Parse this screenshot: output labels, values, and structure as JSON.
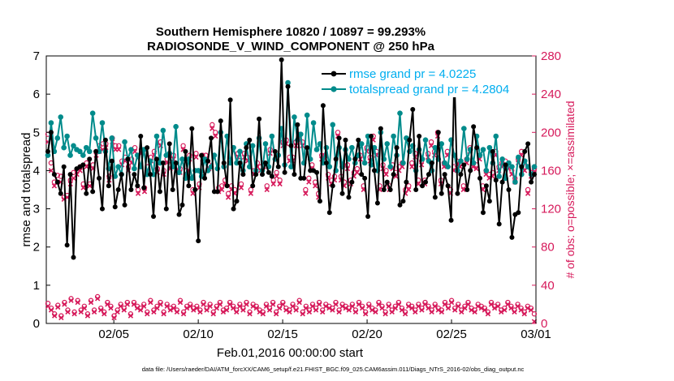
{
  "chart_data": {
    "type": "line",
    "title": "Southern Hemisphere 10820 / 10897 = 99.293%",
    "subtitle": "RADIOSONDE_V_WIND_COMPONENT @ 250 hPa",
    "xlabel": "Feb.01,2016 00:00:00 start",
    "ylabel": "rmse and totalspread",
    "ylabel_right": "# of obs: o=possible; ×=assimilated",
    "footnote": "data file: /Users/raeder/DAI/ATM_forcXX/CAM6_setup/f.e21.FHIST_BGC.f09_025.CAM6assim.011/Diags_NTrS_2016-02/obs_diag_output.nc",
    "xlim": [
      1,
      30
    ],
    "ylim": [
      0,
      7
    ],
    "ylim_right": [
      0,
      280
    ],
    "x_tick_labels": [
      "02/05",
      "02/10",
      "02/15",
      "02/20",
      "02/25",
      "03/01"
    ],
    "x_tick_values": [
      5,
      10,
      15,
      20,
      25,
      30
    ],
    "y_tick_labels": [
      "0",
      "1",
      "2",
      "3",
      "4",
      "5",
      "6",
      "7"
    ],
    "y_right_tick_labels": [
      "0",
      "40",
      "80",
      "120",
      "160",
      "200",
      "240",
      "280"
    ],
    "legend": [
      "rmse grand pr = 4.0225",
      "totalspread grand pr = 4.2804"
    ],
    "series": [
      {
        "name": "rmse grand pr = 4.0225",
        "color": "#000000",
        "values": [
          4.5,
          5.0,
          3.9,
          3.7,
          3.4,
          4.1,
          2.05,
          3.9,
          1.73,
          4.05,
          4.1,
          4.15,
          3.4,
          4.3,
          3.45,
          4.5,
          3.8,
          3.0,
          4.8,
          3.6,
          4.25,
          3.05,
          3.5,
          3.9,
          3.1,
          4.3,
          3.5,
          3.9,
          3.6,
          4.9,
          3.55,
          4.6,
          3.9,
          2.8,
          4.3,
          3.45,
          4.2,
          3.0,
          4.7,
          3.5,
          4.2,
          2.85,
          3.1,
          4.5,
          3.6,
          5.1,
          3.5,
          2.16,
          4.4,
          3.8,
          4.25,
          4.85,
          3.45,
          3.45,
          5.3,
          4.2,
          3.6,
          5.85,
          3.0,
          3.2,
          4.2,
          3.9,
          4.6,
          4.8,
          3.6,
          3.9,
          5.35,
          3.9,
          4.2,
          3.95,
          3.85,
          4.5,
          4.1,
          6.9,
          3.95,
          6.2,
          4.65,
          3.9,
          5.2,
          3.8,
          3.8,
          4.6,
          4.0,
          4.0,
          3.95,
          3.2,
          5.7,
          4.2,
          2.9,
          3.6,
          4.3,
          4.85,
          3.4,
          4.8,
          3.3,
          3.7,
          4.3,
          4.8,
          3.9,
          3.8,
          2.8,
          4.9,
          4.0,
          3.15,
          5.1,
          3.5,
          3.7,
          3.5,
          3.9,
          4.6,
          3.1,
          3.2,
          3.7,
          4.8,
          5.6,
          3.5,
          4.9,
          3.6,
          3.7,
          3.9,
          4.2,
          3.3,
          5.0,
          3.4,
          3.9,
          3.6,
          2.7,
          6.55,
          3.4,
          3.9,
          4.15,
          3.5,
          4.0,
          5.15,
          4.6,
          3.8,
          2.9,
          3.6,
          3.2,
          4.5,
          3.75,
          2.6,
          3.7,
          4.15,
          3.5,
          2.25,
          2.85,
          2.9,
          4.1,
          4.5,
          4.7,
          3.7,
          3.9
        ]
      },
      {
        "name": "totalspread grand pr = 4.2804",
        "color": "#008b8b",
        "values": [
          4.4,
          5.25,
          4.5,
          4.85,
          5.4,
          4.6,
          4.9,
          4.4,
          4.65,
          4.55,
          4.5,
          4.4,
          4.6,
          4.5,
          5.5,
          4.85,
          4.5,
          5.25,
          4.5,
          4.05,
          4.85,
          3.85,
          4.1,
          3.9,
          4.75,
          4.3,
          4.55,
          4.05,
          4.4,
          4.1,
          4.55,
          3.9,
          4.25,
          3.9,
          4.9,
          4.2,
          5.05,
          4.4,
          4.45,
          4.1,
          5.15,
          3.95,
          4.3,
          3.8,
          4.3,
          3.8,
          4.0,
          4.0,
          3.85,
          4.3,
          4.0,
          4.1,
          4.4,
          4.05,
          5.0,
          4.1,
          4.9,
          4.2,
          4.6,
          4.2,
          4.5,
          4.0,
          4.7,
          4.1,
          4.65,
          4.0,
          4.85,
          4.0,
          4.7,
          4.1,
          4.9,
          4.3,
          4.4,
          5.1,
          4.15,
          6.3,
          4.1,
          5.4,
          4.8,
          4.95,
          4.2,
          5.45,
          4.3,
          5.25,
          4.55,
          4.7,
          4.2,
          4.6,
          4.1,
          5.2,
          4.0,
          4.6,
          4.1,
          4.55,
          4.3,
          4.6,
          4.2,
          4.4,
          4.7,
          4.2,
          4.9,
          4.15,
          4.6,
          4.0,
          5.0,
          4.3,
          4.7,
          4.1,
          4.9,
          4.4,
          5.5,
          4.2,
          4.85,
          4.5,
          4.65,
          4.0,
          4.55,
          4.3,
          4.8,
          4.25,
          4.0,
          4.6,
          4.3,
          4.7,
          4.2,
          4.1,
          4.8,
          4.4,
          4.0,
          4.25,
          5.1,
          4.3,
          4.55,
          4.2,
          4.9,
          4.4,
          4.55,
          4.0,
          4.6,
          4.2,
          4.9,
          3.85,
          4.3,
          3.8,
          4.2,
          4.1,
          3.7,
          4.35,
          3.9,
          4.25,
          4.1,
          3.9,
          4.1
        ]
      }
    ],
    "obs_possible_top": [
      198,
      168,
      148,
      155,
      154,
      132,
      134,
      150,
      158,
      160,
      164,
      146,
      168,
      146,
      166,
      180,
      186,
      188,
      188,
      154,
      194,
      186,
      186,
      170,
      174,
      164,
      172,
      184,
      140,
      182,
      142,
      164,
      174,
      180,
      162,
      190,
      160,
      172,
      166,
      176,
      164,
      162,
      186,
      160,
      176,
      140,
      178,
      146,
      176,
      176,
      166,
      208,
      200,
      142,
      144,
      150,
      136,
      144,
      140,
      178,
      146,
      178,
      174,
      140,
      160,
      168,
      164,
      168,
      144,
      182,
      150,
      158,
      150,
      190,
      192,
      174,
      174,
      190,
      198,
      190,
      140,
      152,
      166,
      148,
      136,
      176,
      176,
      156,
      150,
      154,
      200,
      154,
      148,
      166,
      150,
      158,
      162,
      176,
      144,
      184,
      174,
      196,
      180,
      144,
      166,
      160,
      144,
      166,
      158,
      164,
      168,
      140,
      144,
      168,
      178,
      150,
      170,
      150,
      178,
      190,
      180,
      200,
      150,
      168,
      180,
      140,
      164,
      170,
      168,
      144,
      172,
      184,
      168,
      166,
      176,
      144,
      160,
      156,
      158,
      180,
      164,
      168,
      170,
      166,
      160,
      152,
      172,
      180,
      164,
      140,
      158,
      162
    ],
    "obs_assim_top": [
      190,
      160,
      144,
      148,
      148,
      130,
      132,
      146,
      152,
      156,
      160,
      142,
      164,
      144,
      162,
      176,
      180,
      182,
      184,
      150,
      190,
      182,
      182,
      166,
      170,
      160,
      168,
      180,
      136,
      178,
      138,
      160,
      170,
      176,
      158,
      186,
      156,
      168,
      162,
      172,
      160,
      158,
      182,
      156,
      172,
      136,
      174,
      142,
      172,
      172,
      162,
      204,
      196,
      138,
      140,
      146,
      132,
      140,
      136,
      174,
      142,
      174,
      170,
      136,
      156,
      164,
      160,
      164,
      140,
      178,
      146,
      154,
      146,
      186,
      188,
      170,
      170,
      186,
      194,
      186,
      136,
      148,
      162,
      144,
      132,
      172,
      172,
      152,
      146,
      150,
      196,
      150,
      144,
      162,
      146,
      154,
      158,
      172,
      140,
      180,
      170,
      192,
      176,
      140,
      162,
      156,
      140,
      162,
      154,
      160,
      164,
      136,
      140,
      164,
      174,
      146,
      166,
      146,
      174,
      186,
      176,
      196,
      146,
      164,
      176,
      136,
      160,
      166,
      164,
      140,
      168,
      180,
      164,
      162,
      172,
      140,
      156,
      152,
      154,
      176,
      160,
      164,
      166,
      162,
      156,
      148,
      168,
      176,
      160,
      136,
      154,
      158
    ],
    "obs_possible_bottom": [
      21,
      16,
      10,
      19,
      8,
      22,
      14,
      26,
      12,
      24,
      14,
      18,
      10,
      24,
      14,
      28,
      16,
      12,
      22,
      18,
      8,
      14,
      20,
      16,
      22,
      10,
      22,
      18,
      16,
      20,
      12,
      24,
      14,
      18,
      22,
      12,
      20,
      16,
      18,
      14,
      24,
      12,
      18,
      20,
      16,
      18,
      14,
      22,
      16,
      20,
      12,
      18,
      22,
      14,
      16,
      22,
      18,
      14,
      20,
      16,
      22,
      12,
      20,
      18,
      14,
      12,
      20,
      16,
      22,
      12,
      18,
      22,
      16,
      14,
      20,
      16,
      24,
      12,
      18,
      14,
      20,
      16,
      22,
      14,
      20,
      18,
      16,
      22,
      14,
      20,
      18,
      16,
      20,
      14,
      22,
      18,
      12,
      20,
      16,
      14,
      22,
      18,
      12,
      20,
      14,
      18,
      22,
      16,
      12,
      20,
      18,
      14,
      20,
      16,
      22,
      18,
      14,
      20,
      16,
      14,
      22,
      18,
      24,
      16,
      20,
      14,
      18,
      22,
      16,
      14,
      20,
      18,
      16,
      12,
      22,
      18,
      20,
      14,
      16,
      22,
      18,
      14,
      20,
      16,
      12,
      18,
      16,
      10
    ],
    "obs_assim_bottom": [
      18,
      14,
      8,
      17,
      6,
      20,
      12,
      24,
      10,
      22,
      12,
      16,
      8,
      22,
      12,
      26,
      14,
      10,
      20,
      16,
      6,
      12,
      18,
      14,
      20,
      8,
      20,
      16,
      14,
      18,
      10,
      22,
      12,
      16,
      20,
      10,
      18,
      14,
      16,
      12,
      22,
      10,
      16,
      18,
      14,
      16,
      12,
      20,
      14,
      18,
      10,
      16,
      20,
      12,
      14,
      20,
      16,
      12,
      18,
      14,
      20,
      10,
      18,
      16,
      12,
      10,
      18,
      14,
      20,
      10,
      16,
      20,
      14,
      12,
      18,
      14,
      22,
      10,
      16,
      12,
      18,
      14,
      20,
      12,
      18,
      16,
      14,
      20,
      12,
      18,
      16,
      14,
      18,
      12,
      20,
      16,
      10,
      18,
      14,
      12,
      20,
      16,
      10,
      18,
      12,
      16,
      20,
      14,
      10,
      18,
      16,
      12,
      18,
      14,
      20,
      16,
      12,
      18,
      14,
      12,
      20,
      16,
      22,
      14,
      18,
      12,
      16,
      20,
      14,
      12,
      18,
      16,
      14,
      10,
      20,
      16,
      18,
      12,
      14,
      20,
      16,
      12,
      18,
      14,
      10,
      16,
      14,
      2
    ]
  }
}
